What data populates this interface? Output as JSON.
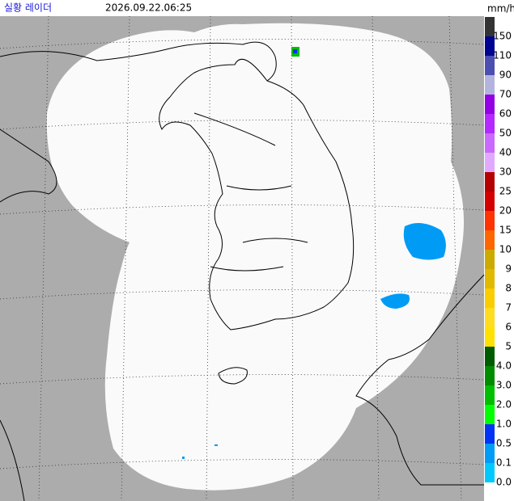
{
  "header": {
    "title": "실황 레이더",
    "timestamp": "2026.09.22.06:25"
  },
  "legend": {
    "unit": "mm/h",
    "levels": [
      {
        "label": "150",
        "color": "#333333"
      },
      {
        "label": "110",
        "color": "#000390"
      },
      {
        "label": "90",
        "color": "#4c4eb1"
      },
      {
        "label": "70",
        "color": "#b3b4de"
      },
      {
        "label": "60",
        "color": "#9300e4"
      },
      {
        "label": "50",
        "color": "#b329ff"
      },
      {
        "label": "40",
        "color": "#c969ff"
      },
      {
        "label": "30",
        "color": "#e0a9ff"
      },
      {
        "label": "25",
        "color": "#b40000"
      },
      {
        "label": "20",
        "color": "#d20000"
      },
      {
        "label": "15",
        "color": "#ff3200"
      },
      {
        "label": "10",
        "color": "#ff6600"
      },
      {
        "label": "9",
        "color": "#ccaa00"
      },
      {
        "label": "8",
        "color": "#e0b900"
      },
      {
        "label": "7",
        "color": "#f9cd00"
      },
      {
        "label": "6",
        "color": "#ffdc1f"
      },
      {
        "label": "5",
        "color": "#ffe100"
      },
      {
        "label": "4.0",
        "color": "#005a00"
      },
      {
        "label": "3.0",
        "color": "#008c00"
      },
      {
        "label": "2.0",
        "color": "#00be00"
      },
      {
        "label": "1.0",
        "color": "#00ff00"
      },
      {
        "label": "0.5",
        "color": "#0033f5"
      },
      {
        "label": "0.1",
        "color": "#009bf5"
      },
      {
        "label": "0.0",
        "color": "#00c8ff"
      }
    ]
  }
}
